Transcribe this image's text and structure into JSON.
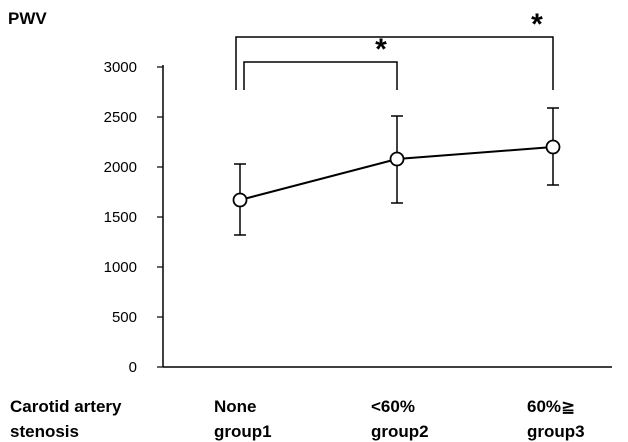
{
  "chart_data": {
    "type": "line",
    "ylabel": "PWV",
    "xlabel_lines": [
      "Carotid artery",
      "stenosis"
    ],
    "ylim": [
      0,
      3000
    ],
    "yticks": [
      0,
      500,
      1000,
      1500,
      2000,
      2500,
      3000
    ],
    "categories": [
      {
        "lines": [
          "None",
          "group1"
        ]
      },
      {
        "lines": [
          "<60%",
          "group2"
        ]
      },
      {
        "lines": [
          "60%≧",
          "group3"
        ]
      }
    ],
    "series": [
      {
        "values": [
          1670,
          2080,
          2200
        ],
        "error_low": [
          1320,
          1640,
          1820
        ],
        "error_high": [
          2030,
          2510,
          2590
        ]
      }
    ],
    "significance": [
      {
        "from": 0,
        "to": 1,
        "label": "*"
      },
      {
        "from": 0,
        "to": 2,
        "label": "*"
      }
    ],
    "marker": "open-circle",
    "colors": {
      "line": "#000000",
      "marker_fill": "#ffffff"
    }
  }
}
